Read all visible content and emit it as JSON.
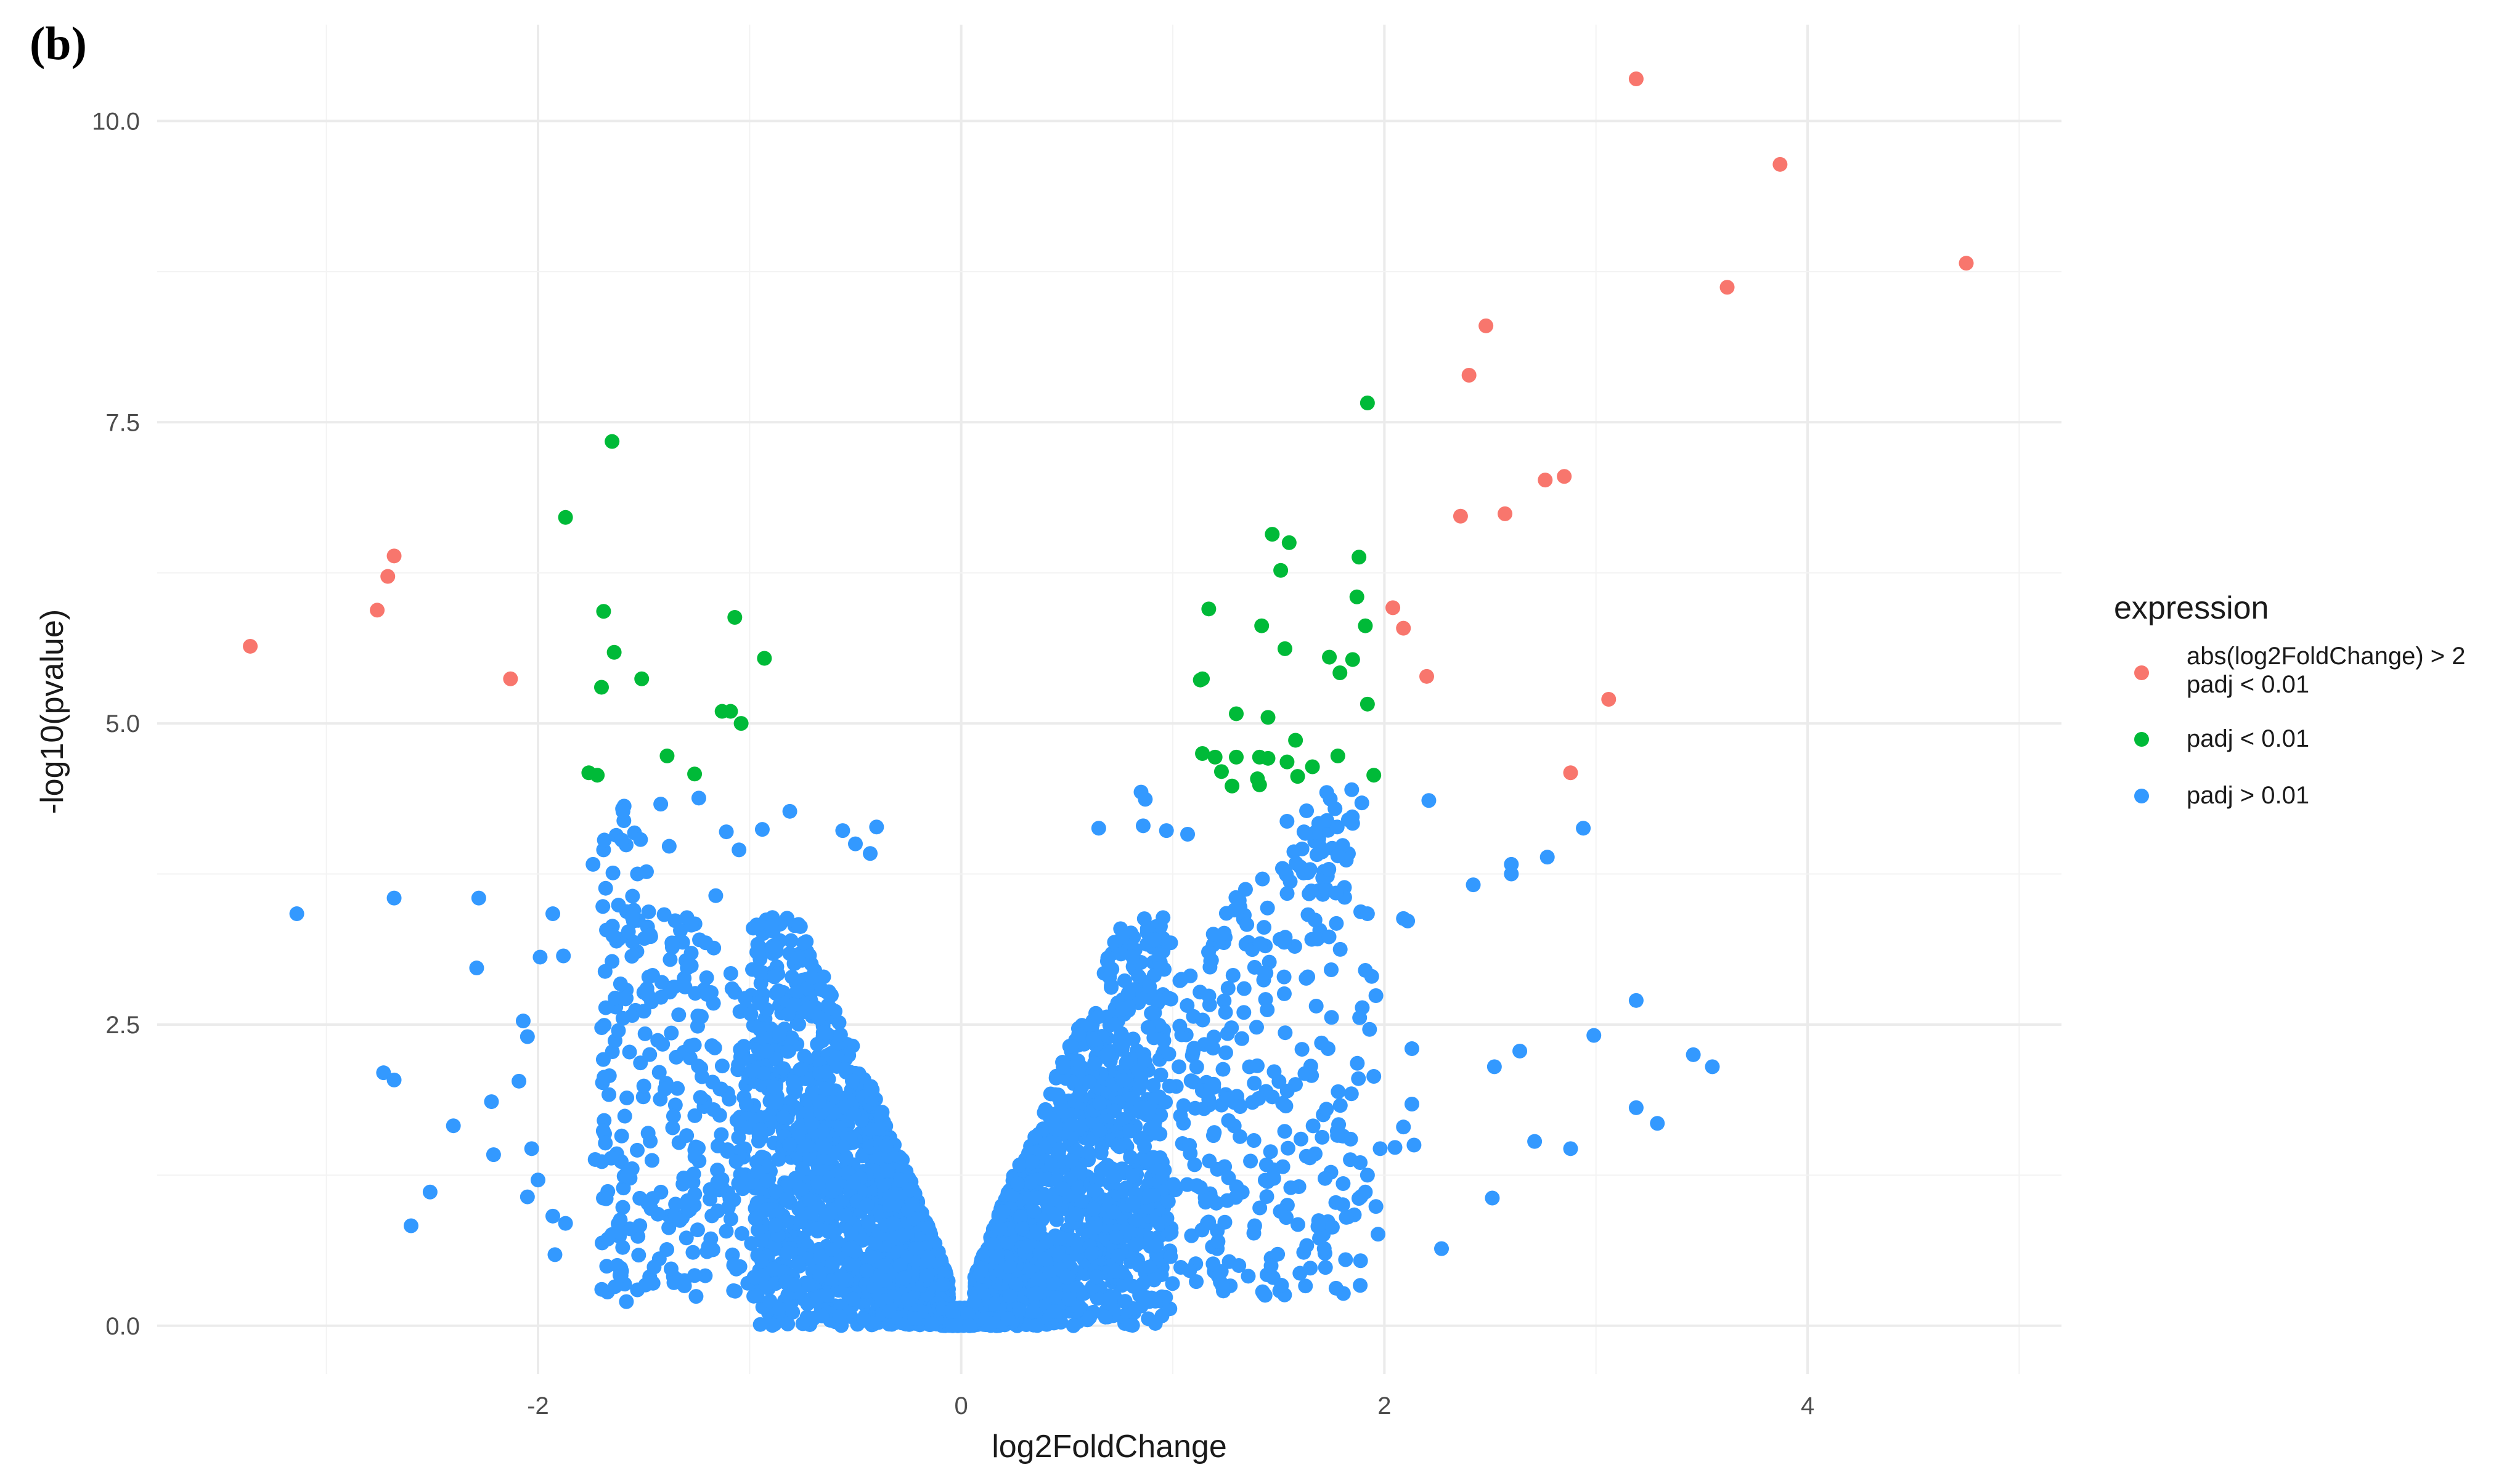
{
  "panel_label": "(b)",
  "chart_data": {
    "type": "scatter",
    "xlabel": "log2FoldChange",
    "ylabel": "-log10(pvalue)",
    "xlim": [
      -3.8,
      5.2
    ],
    "ylim": [
      -0.4,
      10.8
    ],
    "x_ticks": [
      -2,
      0,
      2,
      4
    ],
    "y_ticks": [
      0.0,
      2.5,
      5.0,
      7.5,
      10.0
    ],
    "x_tick_labels": [
      "-2",
      "0",
      "2",
      "4"
    ],
    "y_tick_labels": [
      "0.0",
      "2.5",
      "5.0",
      "7.5",
      "10.0"
    ],
    "grid": true,
    "legend_position": "right",
    "legend": {
      "title": "expression",
      "entries": [
        {
          "label_lines": [
            "abs(log2FoldChange) > 2",
            "padj < 0.01"
          ],
          "color": "#F8766D"
        },
        {
          "label_lines": [
            "padj < 0.01"
          ],
          "color": "#00BA38"
        },
        {
          "label_lines": [
            "padj > 0.01"
          ],
          "color": "#3399FF"
        }
      ]
    },
    "series": [
      {
        "color": "#F8766D",
        "points": [
          [
            3.19,
            10.35
          ],
          [
            3.87,
            9.64
          ],
          [
            4.75,
            8.82
          ],
          [
            3.62,
            8.62
          ],
          [
            2.48,
            8.3
          ],
          [
            2.4,
            7.89
          ],
          [
            2.85,
            7.05
          ],
          [
            2.76,
            7.02
          ],
          [
            2.36,
            6.72
          ],
          [
            2.57,
            6.74
          ],
          [
            2.04,
            5.96
          ],
          [
            2.09,
            5.79
          ],
          [
            2.2,
            5.39
          ],
          [
            3.06,
            5.2
          ],
          [
            2.88,
            4.59
          ],
          [
            -2.68,
            6.39
          ],
          [
            -2.71,
            6.22
          ],
          [
            -2.76,
            5.94
          ],
          [
            -3.36,
            5.64
          ],
          [
            -2.13,
            5.37
          ]
        ]
      },
      {
        "color": "#00BA38",
        "points": [
          [
            -1.65,
            7.34
          ],
          [
            -1.87,
            6.71
          ],
          [
            -1.69,
            5.93
          ],
          [
            -1.64,
            5.59
          ],
          [
            -1.7,
            5.3
          ],
          [
            -1.51,
            5.37
          ],
          [
            -1.07,
            5.88
          ],
          [
            -0.93,
            5.54
          ],
          [
            -1.13,
            5.1
          ],
          [
            -1.09,
            5.1
          ],
          [
            -1.04,
            5.0
          ],
          [
            -1.39,
            4.73
          ],
          [
            -1.76,
            4.59
          ],
          [
            -1.72,
            4.57
          ],
          [
            -1.26,
            4.58
          ],
          [
            1.92,
            7.66
          ],
          [
            1.47,
            6.57
          ],
          [
            1.55,
            6.5
          ],
          [
            1.51,
            6.27
          ],
          [
            1.88,
            6.38
          ],
          [
            1.87,
            6.05
          ],
          [
            1.17,
            5.95
          ],
          [
            1.42,
            5.81
          ],
          [
            1.91,
            5.81
          ],
          [
            1.53,
            5.62
          ],
          [
            1.74,
            5.55
          ],
          [
            1.85,
            5.53
          ],
          [
            1.14,
            5.37
          ],
          [
            1.13,
            5.36
          ],
          [
            1.79,
            5.42
          ],
          [
            1.92,
            5.16
          ],
          [
            1.3,
            5.08
          ],
          [
            1.45,
            5.05
          ],
          [
            1.58,
            4.86
          ],
          [
            1.14,
            4.75
          ],
          [
            1.2,
            4.72
          ],
          [
            1.3,
            4.72
          ],
          [
            1.41,
            4.72
          ],
          [
            1.45,
            4.71
          ],
          [
            1.54,
            4.68
          ],
          [
            1.66,
            4.64
          ],
          [
            1.78,
            4.73
          ],
          [
            1.23,
            4.6
          ],
          [
            1.4,
            4.54
          ],
          [
            1.59,
            4.56
          ],
          [
            1.95,
            4.57
          ],
          [
            1.28,
            4.48
          ],
          [
            1.41,
            4.49
          ]
        ]
      },
      {
        "color": "#3399FF",
        "points": [
          [
            -3.14,
            3.42
          ],
          [
            -2.68,
            3.55
          ],
          [
            -2.28,
            3.55
          ],
          [
            -1.93,
            3.42
          ],
          [
            -1.99,
            3.06
          ],
          [
            -2.29,
            2.97
          ],
          [
            -2.07,
            2.53
          ],
          [
            -2.05,
            2.4
          ],
          [
            -2.73,
            2.1
          ],
          [
            -2.68,
            2.04
          ],
          [
            -2.09,
            2.03
          ],
          [
            -2.22,
            1.86
          ],
          [
            -2.4,
            1.66
          ],
          [
            -2.03,
            1.47
          ],
          [
            -2.21,
            1.42
          ],
          [
            -2.05,
            1.07
          ],
          [
            -2.0,
            1.21
          ],
          [
            -2.51,
            1.11
          ],
          [
            -2.6,
            0.83
          ],
          [
            -1.93,
            0.91
          ],
          [
            -1.87,
            0.85
          ],
          [
            -1.92,
            0.59
          ],
          [
            -1.6,
            0.65
          ],
          [
            -1.38,
            3.98
          ],
          [
            -1.42,
            4.33
          ],
          [
            -1.24,
            4.38
          ],
          [
            -1.11,
            4.1
          ],
          [
            -1.05,
            3.95
          ],
          [
            -0.94,
            4.12
          ],
          [
            -0.81,
            4.27
          ],
          [
            -0.56,
            4.11
          ],
          [
            -0.4,
            4.14
          ],
          [
            -0.5,
            4.0
          ],
          [
            -0.43,
            3.92
          ],
          [
            -1.74,
            3.83
          ],
          [
            -1.53,
            3.75
          ],
          [
            -1.16,
            3.57
          ],
          [
            -1.88,
            3.07
          ],
          [
            -1.68,
            2.64
          ],
          [
            -1.62,
            2.45
          ],
          [
            -1.37,
            2.43
          ],
          [
            -1.5,
            1.99
          ],
          [
            -1.59,
            1.74
          ],
          [
            -1.73,
            1.38
          ],
          [
            -1.58,
            1.24
          ],
          [
            -1.67,
            0.72
          ],
          [
            -1.62,
            0.78
          ],
          [
            2.21,
            4.36
          ],
          [
            2.42,
            3.66
          ],
          [
            2.6,
            3.83
          ],
          [
            2.6,
            3.75
          ],
          [
            2.77,
            3.89
          ],
          [
            2.94,
            4.13
          ],
          [
            2.09,
            3.38
          ],
          [
            2.11,
            3.36
          ],
          [
            1.92,
            3.42
          ],
          [
            1.91,
            2.95
          ],
          [
            1.94,
            2.9
          ],
          [
            1.96,
            2.74
          ],
          [
            1.93,
            2.46
          ],
          [
            2.13,
            2.3
          ],
          [
            1.95,
            2.07
          ],
          [
            2.13,
            1.84
          ],
          [
            2.09,
            1.65
          ],
          [
            2.05,
            1.48
          ],
          [
            1.98,
            1.47
          ],
          [
            2.14,
            1.5
          ],
          [
            1.92,
            1.25
          ],
          [
            1.91,
            1.11
          ],
          [
            1.96,
            0.99
          ],
          [
            1.97,
            0.76
          ],
          [
            2.27,
            0.64
          ],
          [
            2.52,
            2.15
          ],
          [
            2.64,
            2.28
          ],
          [
            2.71,
            1.53
          ],
          [
            2.88,
            1.47
          ],
          [
            2.51,
            1.06
          ],
          [
            2.99,
            2.41
          ],
          [
            3.19,
            2.7
          ],
          [
            3.19,
            1.81
          ],
          [
            3.29,
            1.68
          ],
          [
            3.46,
            2.25
          ],
          [
            3.55,
            2.15
          ],
          [
            1.62,
            4.1
          ],
          [
            1.69,
            4.17
          ],
          [
            1.85,
            4.17
          ],
          [
            1.83,
            4.2
          ],
          [
            1.78,
            3.9
          ],
          [
            0.85,
            4.43
          ],
          [
            0.87,
            4.37
          ],
          [
            0.86,
            4.15
          ],
          [
            0.97,
            4.11
          ],
          [
            1.07,
            4.08
          ],
          [
            0.65,
            4.13
          ],
          [
            0.86,
            0.35
          ],
          [
            0.51,
            0.22
          ],
          [
            0.34,
            0.12
          ],
          [
            0.22,
            0.06
          ],
          [
            0.14,
            0.02
          ],
          [
            0.04,
            0.0
          ],
          [
            -0.04,
            0.0
          ],
          [
            -0.14,
            0.02
          ],
          [
            -0.22,
            0.06
          ],
          [
            -0.34,
            0.12
          ],
          [
            -0.51,
            0.22
          ],
          [
            -0.79,
            0.34
          ]
        ]
      }
    ]
  }
}
